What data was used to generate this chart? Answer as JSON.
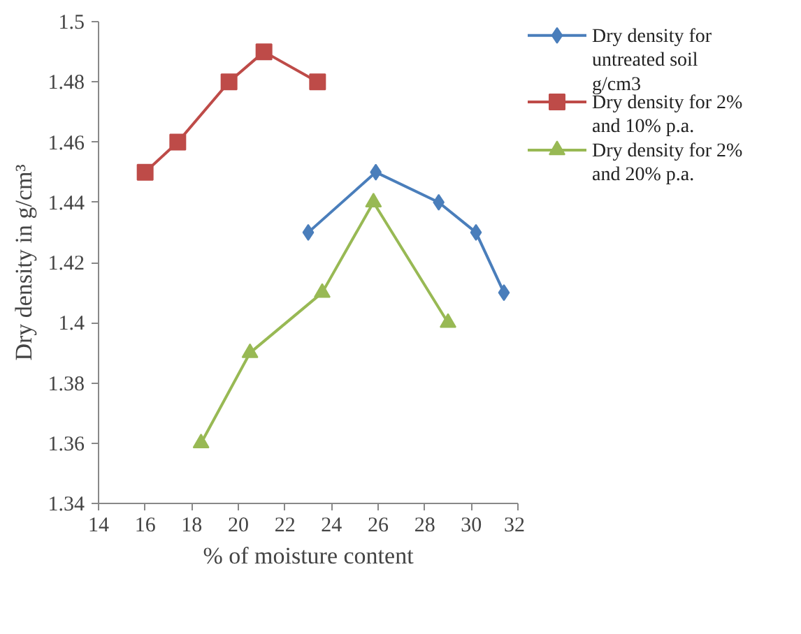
{
  "chart_data": {
    "type": "line",
    "xlabel": "% of moisture content",
    "ylabel": "Dry density in g/cm³",
    "xlim": [
      14,
      32
    ],
    "xticks": [
      14,
      16,
      18,
      20,
      22,
      24,
      26,
      28,
      30,
      32
    ],
    "ylim": [
      1.34,
      1.5
    ],
    "yticks": [
      {
        "value": 1.34,
        "label": "1.34"
      },
      {
        "value": 1.36,
        "label": "1.36"
      },
      {
        "value": 1.38,
        "label": "1.38"
      },
      {
        "value": 1.4,
        "label": "1.4"
      },
      {
        "value": 1.42,
        "label": "1.42"
      },
      {
        "value": 1.44,
        "label": "1.44"
      },
      {
        "value": 1.46,
        "label": "1.46"
      },
      {
        "value": 1.48,
        "label": "1.48"
      },
      {
        "value": 1.5,
        "label": "1.5"
      }
    ],
    "grid": false,
    "legend": "right",
    "series": [
      {
        "name": "Dry density for untreated soil g/cm3",
        "color": "#4a7ebb",
        "marker": "diamond",
        "x": [
          23.0,
          25.9,
          28.6,
          30.2,
          31.4
        ],
        "values": [
          1.43,
          1.45,
          1.44,
          1.43,
          1.41
        ]
      },
      {
        "name": "Dry density for 2% and 10% p.a.",
        "color": "#be4b48",
        "marker": "square",
        "x": [
          16.0,
          17.4,
          19.6,
          21.1,
          23.4
        ],
        "values": [
          1.45,
          1.46,
          1.48,
          1.49,
          1.48
        ]
      },
      {
        "name": "Dry density for 2% and 20% p.a.",
        "color": "#98b954",
        "marker": "triangle",
        "x": [
          18.4,
          20.5,
          23.6,
          25.8,
          29.0
        ],
        "values": [
          1.36,
          1.39,
          1.41,
          1.44,
          1.4
        ]
      }
    ]
  }
}
